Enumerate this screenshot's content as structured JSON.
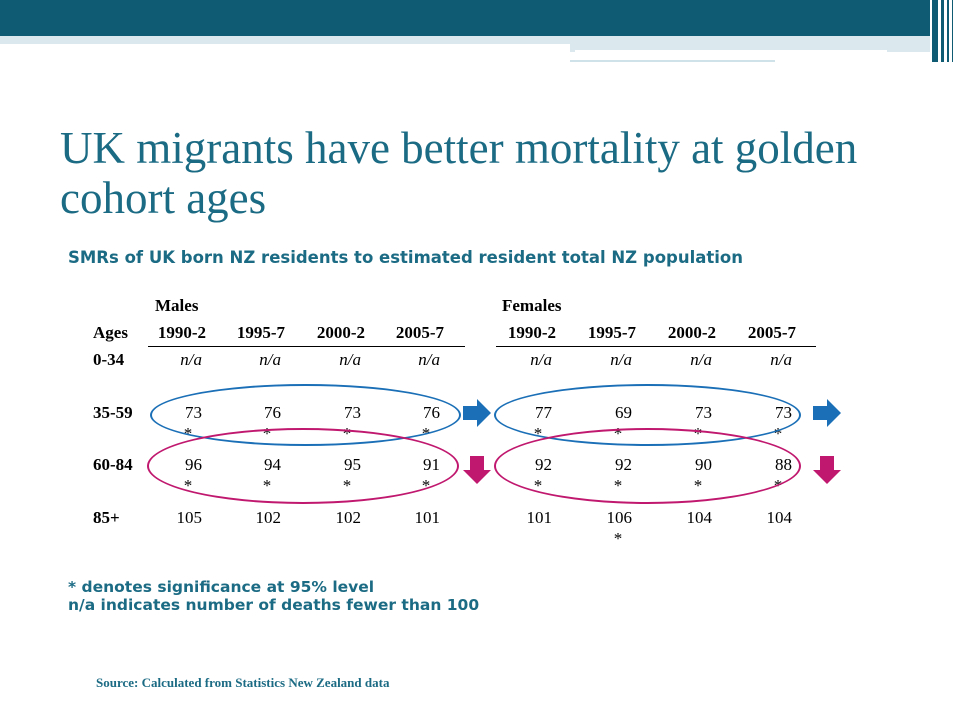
{
  "slide": {
    "title": "UK migrants have better mortality at golden cohort ages",
    "subtitle": "SMRs of UK born NZ residents to estimated resident total NZ population",
    "accent_color": "#1c6b84",
    "band_color": "#0f5b73"
  },
  "table": {
    "males_label": "Males",
    "females_label": "Females",
    "ages_label": "Ages",
    "periods": [
      "1990-2",
      "1995-7",
      "2000-2",
      "2005-7"
    ],
    "rows": [
      {
        "age": "0-34",
        "males": [
          "n/a",
          "n/a",
          "n/a",
          "n/a"
        ],
        "males_sig": [
          "",
          "",
          "",
          ""
        ],
        "females": [
          "n/a",
          "n/a",
          "n/a",
          "n/a"
        ],
        "females_sig": [
          "",
          "",
          "",
          ""
        ]
      },
      {
        "age": "35-59",
        "males": [
          "73",
          "76",
          "73",
          "76"
        ],
        "males_sig": [
          "*",
          "*",
          "*",
          "*"
        ],
        "females": [
          "77",
          "69",
          "73",
          "73"
        ],
        "females_sig": [
          "*",
          "*",
          "*",
          "*"
        ]
      },
      {
        "age": "60-84",
        "males": [
          "96",
          "94",
          "95",
          "91"
        ],
        "males_sig": [
          "*",
          "*",
          "*",
          "*"
        ],
        "females": [
          "92",
          "92",
          "90",
          "88"
        ],
        "females_sig": [
          "*",
          "*",
          "*",
          "*"
        ]
      },
      {
        "age": "85+",
        "males": [
          "105",
          "102",
          "102",
          "101"
        ],
        "males_sig": [
          "",
          "",
          "",
          ""
        ],
        "females": [
          "101",
          "106",
          "104",
          "104"
        ],
        "females_sig": [
          "",
          "*",
          "",
          ""
        ]
      }
    ],
    "circle_colors": {
      "row_35_59": "#1a6fb6",
      "row_60_84": "#c0186e"
    },
    "trend_icons": {
      "row_35_59": "arrow-right-icon",
      "row_60_84": "arrow-down-icon"
    }
  },
  "notes": {
    "significance": "* denotes significance at 95% level",
    "na": "n/a indicates number of deaths fewer than 100"
  },
  "source": "Source: Calculated from Statistics New Zealand data"
}
